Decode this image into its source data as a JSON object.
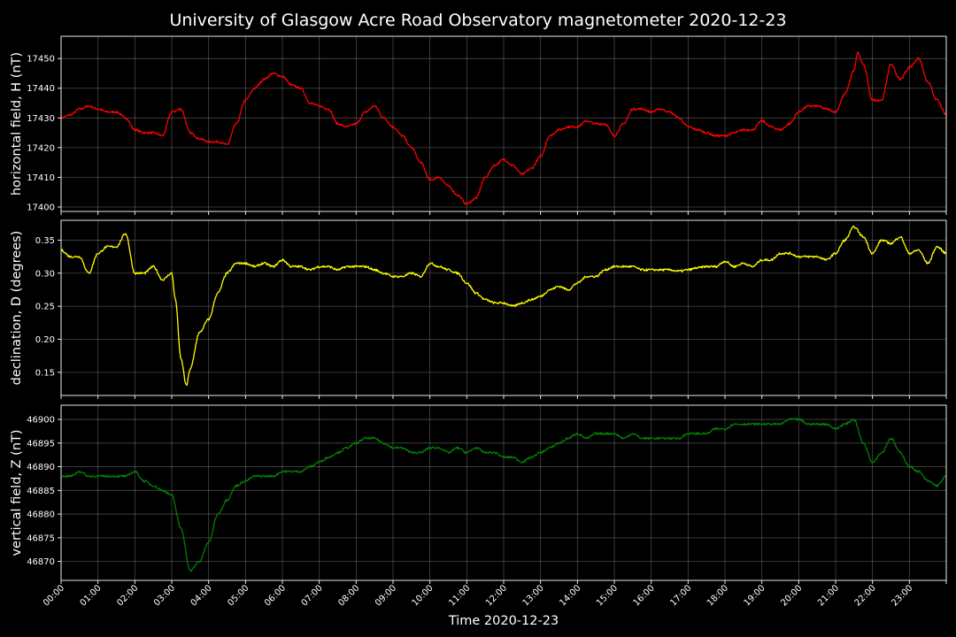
{
  "chart_data": {
    "title": "University of Glasgow Acre Road Observatory magnetometer 2020-12-23",
    "xlabel": "Time 2020-12-23",
    "x_tick_labels": [
      "00:00",
      "01:00",
      "02:00",
      "03:00",
      "04:00",
      "05:00",
      "06:00",
      "07:00",
      "08:00",
      "09:00",
      "10:00",
      "11:00",
      "12:00",
      "13:00",
      "14:00",
      "15:00",
      "16:00",
      "17:00",
      "18:00",
      "19:00",
      "20:00",
      "21:00",
      "22:00",
      "23:00"
    ],
    "xlim_hours": [
      0,
      24
    ],
    "background": "#000000",
    "grid": true,
    "panels": [
      {
        "type": "line",
        "name": "horizontal",
        "ylabel": "horizontal field, H (nT)",
        "color": "#ff0000",
        "ylim": [
          17398.5,
          17457.5
        ],
        "yticks": [
          17400,
          17410,
          17420,
          17430,
          17440,
          17450
        ],
        "x_hours": [
          0,
          0.25,
          0.5,
          0.75,
          1.0,
          1.25,
          1.5,
          1.75,
          2.0,
          2.25,
          2.5,
          2.75,
          3.0,
          3.25,
          3.5,
          3.75,
          4.0,
          4.25,
          4.5,
          4.75,
          5.0,
          5.25,
          5.5,
          5.75,
          6.0,
          6.25,
          6.5,
          6.75,
          7.0,
          7.25,
          7.5,
          7.75,
          8.0,
          8.25,
          8.5,
          8.75,
          9.0,
          9.25,
          9.5,
          9.75,
          10.0,
          10.25,
          10.5,
          10.75,
          11.0,
          11.25,
          11.5,
          11.75,
          12.0,
          12.25,
          12.5,
          12.75,
          13.0,
          13.25,
          13.5,
          13.75,
          14.0,
          14.25,
          14.5,
          14.75,
          15.0,
          15.25,
          15.5,
          15.75,
          16.0,
          16.25,
          16.5,
          16.75,
          17.0,
          17.25,
          17.5,
          17.75,
          18.0,
          18.25,
          18.5,
          18.75,
          19.0,
          19.25,
          19.5,
          19.75,
          20.0,
          20.25,
          20.5,
          20.75,
          21.0,
          21.25,
          21.5,
          21.6,
          21.75,
          22.0,
          22.25,
          22.5,
          22.75,
          23.0,
          23.25,
          23.5,
          23.75,
          24.0
        ],
        "values": [
          17430,
          17431,
          17433,
          17434,
          17433,
          17432,
          17432,
          17430,
          17426,
          17425,
          17425,
          17424,
          17432,
          17433,
          17425,
          17423,
          17422,
          17422,
          17421,
          17428,
          17436,
          17440,
          17443,
          17445,
          17444,
          17441,
          17440,
          17435,
          17434,
          17433,
          17428,
          17427,
          17428,
          17432,
          17434,
          17430,
          17427,
          17424,
          17420,
          17415,
          17409,
          17410,
          17407,
          17404,
          17401,
          17403,
          17410,
          17414,
          17416,
          17414,
          17411,
          17413,
          17417,
          17424,
          17426,
          17427,
          17427,
          17429,
          17428,
          17428,
          17424,
          17428,
          17433,
          17433,
          17432,
          17433,
          17432,
          17430,
          17427,
          17426,
          17425,
          17424,
          17424,
          17425,
          17426,
          17426,
          17429,
          17427,
          17426,
          17428,
          17432,
          17434,
          17434,
          17433,
          17432,
          17438,
          17446,
          17452,
          17448,
          17436,
          17436,
          17448,
          17443,
          17447,
          17450,
          17442,
          17436,
          17431
        ]
      },
      {
        "type": "line",
        "name": "declination",
        "ylabel": "declination, D (degrees)",
        "color": "#ffff00",
        "ylim": [
          0.115,
          0.38
        ],
        "yticks": [
          0.15,
          0.2,
          0.25,
          0.3,
          0.35
        ],
        "tick_format": 2,
        "x_hours": [
          0,
          0.25,
          0.5,
          0.75,
          1.0,
          1.25,
          1.5,
          1.75,
          2.0,
          2.25,
          2.5,
          2.75,
          3.0,
          3.1,
          3.25,
          3.4,
          3.5,
          3.75,
          4.0,
          4.25,
          4.5,
          4.75,
          5.0,
          5.25,
          5.5,
          5.75,
          6.0,
          6.25,
          6.5,
          6.75,
          7.0,
          7.25,
          7.5,
          7.75,
          8.0,
          8.25,
          8.5,
          8.75,
          9.0,
          9.25,
          9.5,
          9.75,
          10.0,
          10.25,
          10.5,
          10.75,
          11.0,
          11.25,
          11.5,
          11.75,
          12.0,
          12.25,
          12.5,
          12.75,
          13.0,
          13.25,
          13.5,
          13.75,
          14.0,
          14.25,
          14.5,
          14.75,
          15.0,
          15.25,
          15.5,
          15.75,
          16.0,
          16.25,
          16.5,
          16.75,
          17.0,
          17.25,
          17.5,
          17.75,
          18.0,
          18.25,
          18.5,
          18.75,
          19.0,
          19.25,
          19.5,
          19.75,
          20.0,
          20.25,
          20.5,
          20.75,
          21.0,
          21.25,
          21.5,
          21.75,
          22.0,
          22.25,
          22.5,
          22.75,
          23.0,
          23.25,
          23.5,
          23.75,
          24.0
        ],
        "values": [
          0.335,
          0.325,
          0.325,
          0.3,
          0.33,
          0.34,
          0.34,
          0.36,
          0.3,
          0.3,
          0.31,
          0.29,
          0.3,
          0.26,
          0.17,
          0.13,
          0.155,
          0.21,
          0.23,
          0.27,
          0.3,
          0.315,
          0.315,
          0.31,
          0.315,
          0.31,
          0.32,
          0.31,
          0.31,
          0.305,
          0.31,
          0.31,
          0.305,
          0.31,
          0.31,
          0.31,
          0.305,
          0.3,
          0.295,
          0.295,
          0.3,
          0.295,
          0.315,
          0.31,
          0.305,
          0.3,
          0.285,
          0.27,
          0.26,
          0.255,
          0.255,
          0.25,
          0.255,
          0.26,
          0.265,
          0.275,
          0.28,
          0.275,
          0.285,
          0.295,
          0.295,
          0.305,
          0.31,
          0.31,
          0.31,
          0.305,
          0.305,
          0.305,
          0.305,
          0.303,
          0.305,
          0.308,
          0.31,
          0.31,
          0.318,
          0.31,
          0.315,
          0.31,
          0.32,
          0.32,
          0.33,
          0.33,
          0.325,
          0.325,
          0.325,
          0.32,
          0.33,
          0.35,
          0.37,
          0.355,
          0.33,
          0.35,
          0.345,
          0.355,
          0.33,
          0.335,
          0.315,
          0.34,
          0.33
        ]
      },
      {
        "type": "line",
        "name": "vertical",
        "ylabel": "vertical field, Z (nT)",
        "color": "#008000",
        "ylim": [
          46866,
          46903
        ],
        "yticks": [
          46870,
          46875,
          46880,
          46885,
          46890,
          46895,
          46900
        ],
        "x_hours": [
          0,
          0.25,
          0.5,
          0.75,
          1.0,
          1.25,
          1.5,
          1.75,
          2.0,
          2.25,
          2.5,
          2.75,
          3.0,
          3.25,
          3.5,
          3.75,
          4.0,
          4.25,
          4.5,
          4.75,
          5.0,
          5.25,
          5.5,
          5.75,
          6.0,
          6.25,
          6.5,
          6.75,
          7.0,
          7.25,
          7.5,
          7.75,
          8.0,
          8.25,
          8.5,
          8.75,
          9.0,
          9.25,
          9.5,
          9.75,
          10.0,
          10.25,
          10.5,
          10.75,
          11.0,
          11.25,
          11.5,
          11.75,
          12.0,
          12.25,
          12.5,
          12.75,
          13.0,
          13.25,
          13.5,
          13.75,
          14.0,
          14.25,
          14.5,
          14.75,
          15.0,
          15.25,
          15.5,
          15.75,
          16.0,
          16.25,
          16.5,
          16.75,
          17.0,
          17.25,
          17.5,
          17.75,
          18.0,
          18.25,
          18.5,
          18.75,
          19.0,
          19.25,
          19.5,
          19.75,
          20.0,
          20.25,
          20.5,
          20.75,
          21.0,
          21.25,
          21.5,
          21.75,
          22.0,
          22.25,
          22.5,
          22.75,
          23.0,
          23.25,
          23.5,
          23.75,
          24.0
        ],
        "values": [
          46888,
          46888,
          46889,
          46888,
          46888,
          46888,
          46888,
          46888,
          46889,
          46887,
          46886,
          46885,
          46884,
          46877,
          46868,
          46870,
          46874,
          46880,
          46883,
          46886,
          46887,
          46888,
          46888,
          46888,
          46889,
          46889,
          46889,
          46890,
          46891,
          46892,
          46893,
          46894,
          46895,
          46896,
          46896,
          46895,
          46894,
          46894,
          46893,
          46893,
          46894,
          46894,
          46893,
          46894,
          46893,
          46894,
          46893,
          46893,
          46892,
          46892,
          46891,
          46892,
          46893,
          46894,
          46895,
          46896,
          46897,
          46896,
          46897,
          46897,
          46897,
          46896,
          46897,
          46896,
          46896,
          46896,
          46896,
          46896,
          46897,
          46897,
          46897,
          46898,
          46898,
          46899,
          46899,
          46899,
          46899,
          46899,
          46899,
          46900,
          46900,
          46899,
          46899,
          46899,
          46898,
          46899,
          46900,
          46895,
          46891,
          46893,
          46896,
          46893,
          46890,
          46889,
          46887,
          46886,
          46888
        ]
      }
    ]
  }
}
